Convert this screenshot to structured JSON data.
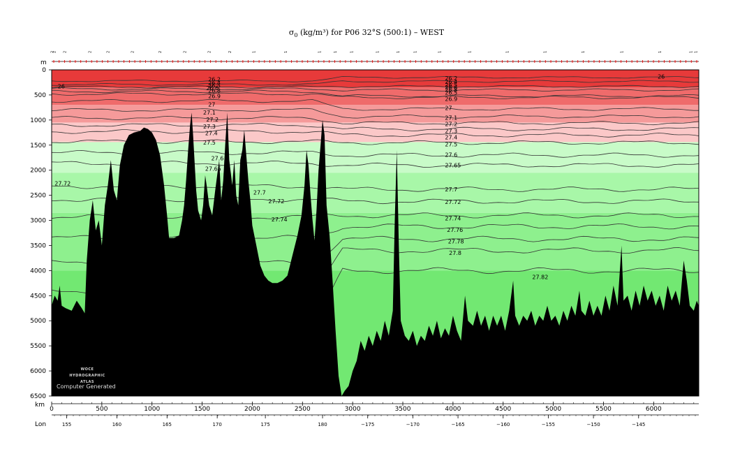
{
  "title": {
    "symbol": "σ",
    "sub": "0",
    "text": " (kg/m³) for P06 32°S (500:1) – WEST"
  },
  "watermark": {
    "line1": "WOCE",
    "line2": "HYDROGRAPHIC",
    "line3": "ATLAS",
    "line4": "Computer Generated"
  },
  "colors": {
    "bottom": "#000000",
    "band_dark_red": "#e73a3a",
    "band_red": "#ef6b6b",
    "band_pink": "#f59a9a",
    "band_light_pink": "#fbc8c8",
    "band_pale_green": "#c8fbc8",
    "band_light_green": "#a8f7a8",
    "band_green": "#8ef08e",
    "band_deep_green": "#72e872",
    "contour": "#333333",
    "tick_red": "#d00000"
  },
  "chart_data": {
    "type": "section-contour",
    "variable": "sigma-0 density",
    "units": "kg/m³",
    "y_axis": {
      "label": "m",
      "range": [
        0,
        6500
      ],
      "reversed": true,
      "ticks": [
        0,
        500,
        1000,
        1500,
        2000,
        2500,
        3000,
        3500,
        4000,
        4500,
        5000,
        5500,
        6000,
        6500
      ]
    },
    "x_axis": {
      "label": "km",
      "range": [
        0,
        6450
      ],
      "ticks": [
        0,
        500,
        1000,
        1500,
        2000,
        2500,
        3000,
        3500,
        4000,
        4500,
        5000,
        5500,
        6000
      ]
    },
    "lon_axis": {
      "label": "Lon",
      "ticks": [
        {
          "km": 150,
          "label": "155"
        },
        {
          "km": 650,
          "label": "160"
        },
        {
          "km": 1150,
          "label": "165"
        },
        {
          "km": 1650,
          "label": "170"
        },
        {
          "km": 2130,
          "label": "175"
        },
        {
          "km": 2700,
          "label": "180"
        },
        {
          "km": 3150,
          "label": "−175"
        },
        {
          "km": 3600,
          "label": "−170"
        },
        {
          "km": 4050,
          "label": "−165"
        },
        {
          "km": 4500,
          "label": "−160"
        },
        {
          "km": 4950,
          "label": "−155"
        },
        {
          "km": 5400,
          "label": "−150"
        },
        {
          "km": 5850,
          "label": "−145"
        }
      ]
    },
    "stations": [
      {
        "km": 5,
        "label": "2"
      },
      {
        "km": 25,
        "label": "2"
      },
      {
        "km": 130,
        "label": "2"
      },
      {
        "km": 380,
        "label": "2"
      },
      {
        "km": 560,
        "label": "2"
      },
      {
        "km": 805,
        "label": "2"
      },
      {
        "km": 1080,
        "label": "2"
      },
      {
        "km": 1325,
        "label": "2"
      },
      {
        "km": 1570,
        "label": "2"
      },
      {
        "km": 1775,
        "label": "2"
      },
      {
        "km": 2015,
        "label": "1"
      },
      {
        "km": 2330,
        "label": "1"
      },
      {
        "km": 2670,
        "label": "1"
      },
      {
        "km": 2825,
        "label": "1"
      },
      {
        "km": 2990,
        "label": "1"
      },
      {
        "km": 3245,
        "label": "1"
      },
      {
        "km": 3450,
        "label": "1"
      },
      {
        "km": 3620,
        "label": "1"
      },
      {
        "km": 3865,
        "label": "1"
      },
      {
        "km": 4165,
        "label": "1"
      },
      {
        "km": 4540,
        "label": "1"
      },
      {
        "km": 4915,
        "label": "1"
      },
      {
        "km": 5295,
        "label": "1"
      },
      {
        "km": 5680,
        "label": "1"
      },
      {
        "km": 6060,
        "label": "1"
      },
      {
        "km": 6370,
        "label": "1"
      },
      {
        "km": 6420,
        "label": "1"
      }
    ],
    "color_bands": [
      {
        "top": 0,
        "bottom": 350,
        "color": "band_dark_red"
      },
      {
        "top": 350,
        "bottom": 700,
        "color": "band_red"
      },
      {
        "top": 700,
        "bottom": 1050,
        "color": "band_pink"
      },
      {
        "top": 1050,
        "bottom": 1440,
        "color": "band_light_pink"
      },
      {
        "top": 1440,
        "bottom": 2050,
        "color": "band_pale_green"
      },
      {
        "top": 2050,
        "bottom": 2850,
        "color": "band_light_green"
      },
      {
        "top": 2850,
        "bottom": 4000,
        "color": "band_green"
      },
      {
        "top": 4000,
        "bottom": 6500,
        "color": "band_deep_green"
      }
    ],
    "contours": [
      {
        "label": "26.2",
        "west": 220,
        "east": 150
      },
      {
        "label": "26.4",
        "west": 290,
        "east": 230
      },
      {
        "label": "26.5",
        "west": 340,
        "east": 330
      },
      {
        "label": "26.6",
        "west": 380,
        "east": 400
      },
      {
        "label": "26.8",
        "west": 430,
        "east": 520
      },
      {
        "label": "26.9",
        "west": 480,
        "east": 550
      },
      {
        "label": "27",
        "west": 620,
        "east": 780
      },
      {
        "label": "27.1",
        "west": 800,
        "east": 930
      },
      {
        "label": "27.2",
        "west": 960,
        "east": 1060
      },
      {
        "label": "27.3",
        "west": 1100,
        "east": 1180
      },
      {
        "label": "27.4",
        "west": 1230,
        "east": 1300
      },
      {
        "label": "27.5",
        "west": 1430,
        "east": 1450
      },
      {
        "label": "27.6",
        "west": 1650,
        "east": 1700
      },
      {
        "label": "27.65",
        "west": 1860,
        "east": 1900
      },
      {
        "label": "27.7",
        "west": 2320,
        "east": 2380
      },
      {
        "label": "27.72",
        "west": 2580,
        "east": 2620
      },
      {
        "label": "27.74",
        "west": 2930,
        "east": 2900
      },
      {
        "label": "27.76",
        "west": 3350,
        "east": 3120
      },
      {
        "label": "27.78",
        "west": 3850,
        "east": 3370
      },
      {
        "label": "27.8",
        "west": 4400,
        "east": 3600
      },
      {
        "label": "27.82",
        "west": 5200,
        "east": 4000
      }
    ],
    "contour_labels": [
      {
        "text": "26",
        "km": 60,
        "depth": 330
      },
      {
        "text": "26",
        "km": 6040,
        "depth": 130
      },
      {
        "text": "26.2",
        "km": 1560,
        "depth": 190
      },
      {
        "text": "26.4",
        "km": 1560,
        "depth": 260
      },
      {
        "text": "26.5",
        "km": 1560,
        "depth": 310
      },
      {
        "text": "26.6",
        "km": 1540,
        "depth": 360
      },
      {
        "text": "26.8",
        "km": 1560,
        "depth": 410
      },
      {
        "text": "26.9",
        "km": 1560,
        "depth": 520
      },
      {
        "text": "27",
        "km": 1560,
        "depth": 690
      },
      {
        "text": "27.1",
        "km": 1510,
        "depth": 850
      },
      {
        "text": "27.2",
        "km": 1540,
        "depth": 990
      },
      {
        "text": "27.3",
        "km": 1510,
        "depth": 1130
      },
      {
        "text": "27.4",
        "km": 1530,
        "depth": 1260
      },
      {
        "text": "27.5",
        "km": 1510,
        "depth": 1450
      },
      {
        "text": "27.6",
        "km": 1590,
        "depth": 1760
      },
      {
        "text": "27.65",
        "km": 1530,
        "depth": 1970
      },
      {
        "text": "27.72",
        "km": 30,
        "depth": 2260
      },
      {
        "text": "27.7",
        "km": 2010,
        "depth": 2440
      },
      {
        "text": "27.72",
        "km": 2160,
        "depth": 2620
      },
      {
        "text": "27.74",
        "km": 2190,
        "depth": 2980
      },
      {
        "text": "26.2",
        "km": 3920,
        "depth": 170
      },
      {
        "text": "26.4",
        "km": 3920,
        "depth": 240
      },
      {
        "text": "26.5",
        "km": 3920,
        "depth": 300
      },
      {
        "text": "26.6",
        "km": 3920,
        "depth": 350
      },
      {
        "text": "26.8",
        "km": 3920,
        "depth": 400
      },
      {
        "text": "26.5",
        "km": 3920,
        "depth": 450
      },
      {
        "text": "26.9",
        "km": 3920,
        "depth": 580
      },
      {
        "text": "27",
        "km": 3920,
        "depth": 760
      },
      {
        "text": "27.1",
        "km": 3920,
        "depth": 950
      },
      {
        "text": "27.2",
        "km": 3920,
        "depth": 1080
      },
      {
        "text": "27.3",
        "km": 3920,
        "depth": 1220
      },
      {
        "text": "27.4",
        "km": 3920,
        "depth": 1340
      },
      {
        "text": "27.5",
        "km": 3920,
        "depth": 1480
      },
      {
        "text": "27.6",
        "km": 3920,
        "depth": 1690
      },
      {
        "text": "27.65",
        "km": 3920,
        "depth": 1900
      },
      {
        "text": "27.7",
        "km": 3920,
        "depth": 2380
      },
      {
        "text": "27.72",
        "km": 3920,
        "depth": 2630
      },
      {
        "text": "27.74",
        "km": 3920,
        "depth": 2960
      },
      {
        "text": "27.76",
        "km": 3940,
        "depth": 3190
      },
      {
        "text": "27.78",
        "km": 3950,
        "depth": 3420
      },
      {
        "text": "27.8",
        "km": 3960,
        "depth": 3650
      },
      {
        "text": "27.82",
        "km": 4790,
        "depth": 4130
      }
    ],
    "bathymetry": [
      [
        0,
        4700
      ],
      [
        30,
        4500
      ],
      [
        60,
        4600
      ],
      [
        80,
        4300
      ],
      [
        100,
        4700
      ],
      [
        140,
        4750
      ],
      [
        200,
        4800
      ],
      [
        250,
        4600
      ],
      [
        300,
        4750
      ],
      [
        330,
        4850
      ],
      [
        350,
        3800
      ],
      [
        380,
        3000
      ],
      [
        410,
        2600
      ],
      [
        440,
        3200
      ],
      [
        470,
        3000
      ],
      [
        500,
        3500
      ],
      [
        530,
        2700
      ],
      [
        560,
        2300
      ],
      [
        590,
        1800
      ],
      [
        620,
        2400
      ],
      [
        650,
        2600
      ],
      [
        680,
        1900
      ],
      [
        720,
        1500
      ],
      [
        770,
        1300
      ],
      [
        820,
        1250
      ],
      [
        880,
        1220
      ],
      [
        920,
        1150
      ],
      [
        960,
        1180
      ],
      [
        1000,
        1250
      ],
      [
        1040,
        1400
      ],
      [
        1080,
        1700
      ],
      [
        1120,
        2300
      ],
      [
        1150,
        2900
      ],
      [
        1170,
        3350
      ],
      [
        1220,
        3350
      ],
      [
        1270,
        3300
      ],
      [
        1300,
        3000
      ],
      [
        1320,
        2700
      ],
      [
        1340,
        2200
      ],
      [
        1360,
        1600
      ],
      [
        1380,
        1100
      ],
      [
        1395,
        850
      ],
      [
        1410,
        1300
      ],
      [
        1440,
        2400
      ],
      [
        1460,
        2800
      ],
      [
        1490,
        3000
      ],
      [
        1510,
        2700
      ],
      [
        1530,
        2100
      ],
      [
        1545,
        2300
      ],
      [
        1570,
        2700
      ],
      [
        1600,
        2900
      ],
      [
        1630,
        2400
      ],
      [
        1650,
        2100
      ],
      [
        1670,
        1800
      ],
      [
        1690,
        2600
      ],
      [
        1710,
        2200
      ],
      [
        1730,
        1500
      ],
      [
        1750,
        850
      ],
      [
        1770,
        1800
      ],
      [
        1800,
        2300
      ],
      [
        1820,
        1800
      ],
      [
        1840,
        2500
      ],
      [
        1860,
        2700
      ],
      [
        1880,
        1800
      ],
      [
        1900,
        1600
      ],
      [
        1920,
        1200
      ],
      [
        1940,
        1700
      ],
      [
        1960,
        2200
      ],
      [
        1980,
        2600
      ],
      [
        2000,
        3100
      ],
      [
        2040,
        3500
      ],
      [
        2080,
        3900
      ],
      [
        2120,
        4100
      ],
      [
        2160,
        4200
      ],
      [
        2200,
        4250
      ],
      [
        2250,
        4250
      ],
      [
        2300,
        4200
      ],
      [
        2350,
        4100
      ],
      [
        2400,
        3700
      ],
      [
        2450,
        3300
      ],
      [
        2490,
        2900
      ],
      [
        2520,
        2300
      ],
      [
        2540,
        1600
      ],
      [
        2560,
        1900
      ],
      [
        2580,
        2500
      ],
      [
        2600,
        3000
      ],
      [
        2620,
        3400
      ],
      [
        2640,
        2800
      ],
      [
        2660,
        2000
      ],
      [
        2680,
        1500
      ],
      [
        2700,
        1000
      ],
      [
        2720,
        1300
      ],
      [
        2740,
        2700
      ],
      [
        2770,
        3300
      ],
      [
        2800,
        4200
      ],
      [
        2830,
        5200
      ],
      [
        2860,
        6100
      ],
      [
        2890,
        6500
      ],
      [
        2920,
        6400
      ],
      [
        2960,
        6300
      ],
      [
        3000,
        6000
      ],
      [
        3040,
        5800
      ],
      [
        3080,
        5400
      ],
      [
        3120,
        5600
      ],
      [
        3160,
        5300
      ],
      [
        3200,
        5500
      ],
      [
        3240,
        5200
      ],
      [
        3280,
        5400
      ],
      [
        3320,
        5000
      ],
      [
        3360,
        5300
      ],
      [
        3400,
        4800
      ],
      [
        3420,
        3000
      ],
      [
        3440,
        1600
      ],
      [
        3460,
        3500
      ],
      [
        3480,
        5000
      ],
      [
        3520,
        5300
      ],
      [
        3560,
        5400
      ],
      [
        3600,
        5200
      ],
      [
        3640,
        5500
      ],
      [
        3680,
        5300
      ],
      [
        3720,
        5400
      ],
      [
        3760,
        5100
      ],
      [
        3800,
        5300
      ],
      [
        3840,
        5000
      ],
      [
        3880,
        5350
      ],
      [
        3920,
        5150
      ],
      [
        3960,
        5300
      ],
      [
        4000,
        4900
      ],
      [
        4040,
        5200
      ],
      [
        4080,
        5400
      ],
      [
        4120,
        4500
      ],
      [
        4150,
        5000
      ],
      [
        4200,
        5100
      ],
      [
        4240,
        4800
      ],
      [
        4280,
        5100
      ],
      [
        4320,
        4900
      ],
      [
        4360,
        5200
      ],
      [
        4400,
        4900
      ],
      [
        4440,
        5100
      ],
      [
        4480,
        4900
      ],
      [
        4520,
        5200
      ],
      [
        4560,
        4800
      ],
      [
        4600,
        4200
      ],
      [
        4620,
        4900
      ],
      [
        4660,
        5100
      ],
      [
        4700,
        4900
      ],
      [
        4740,
        5000
      ],
      [
        4780,
        4800
      ],
      [
        4820,
        5100
      ],
      [
        4860,
        4900
      ],
      [
        4900,
        5000
      ],
      [
        4940,
        4700
      ],
      [
        4980,
        5000
      ],
      [
        5020,
        4900
      ],
      [
        5060,
        5100
      ],
      [
        5100,
        4800
      ],
      [
        5140,
        5000
      ],
      [
        5180,
        4700
      ],
      [
        5220,
        4900
      ],
      [
        5260,
        4400
      ],
      [
        5280,
        4800
      ],
      [
        5320,
        4900
      ],
      [
        5360,
        4600
      ],
      [
        5400,
        4900
      ],
      [
        5440,
        4700
      ],
      [
        5480,
        4900
      ],
      [
        5520,
        4500
      ],
      [
        5560,
        4800
      ],
      [
        5600,
        4300
      ],
      [
        5640,
        4700
      ],
      [
        5680,
        3500
      ],
      [
        5700,
        4600
      ],
      [
        5740,
        4500
      ],
      [
        5780,
        4800
      ],
      [
        5820,
        4400
      ],
      [
        5860,
        4700
      ],
      [
        5900,
        4300
      ],
      [
        5940,
        4600
      ],
      [
        5980,
        4400
      ],
      [
        6020,
        4700
      ],
      [
        6060,
        4500
      ],
      [
        6100,
        4800
      ],
      [
        6140,
        4300
      ],
      [
        6180,
        4600
      ],
      [
        6220,
        4400
      ],
      [
        6260,
        4700
      ],
      [
        6300,
        3800
      ],
      [
        6330,
        4200
      ],
      [
        6360,
        4700
      ],
      [
        6400,
        4800
      ],
      [
        6430,
        4600
      ],
      [
        6450,
        4700
      ]
    ]
  }
}
